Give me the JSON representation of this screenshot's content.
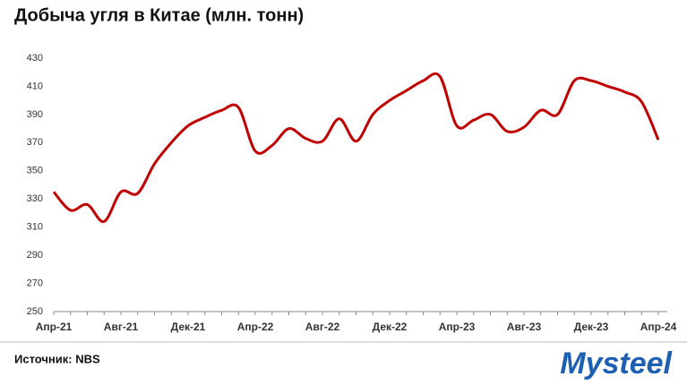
{
  "chart_data": {
    "type": "line",
    "title": "Добыча угля в Китае (млн. тонн)",
    "categories": [
      "Апр-21",
      null,
      null,
      null,
      "Авг-21",
      null,
      null,
      null,
      "Дек-21",
      null,
      null,
      null,
      "Апр-22",
      null,
      null,
      null,
      "Авг-22",
      null,
      null,
      null,
      "Дек-22",
      null,
      null,
      null,
      "Апр-23",
      null,
      null,
      null,
      "Авг-23",
      null,
      null,
      null,
      "Дек-23",
      null,
      null,
      null,
      "Апр-24"
    ],
    "series": [
      {
        "name": "Добыча угля",
        "color": "#c00000",
        "values": [
          335,
          322,
          326,
          314,
          335,
          334,
          355,
          370,
          382,
          388,
          393,
          395,
          364,
          368,
          380,
          373,
          371,
          387,
          371,
          390,
          400,
          407,
          414,
          417,
          382,
          386,
          390,
          378,
          381,
          393,
          390,
          414,
          414,
          410,
          406,
          399,
          372
        ]
      }
    ],
    "ylim": [
      250,
      430
    ],
    "yticks": [
      250,
      270,
      290,
      310,
      330,
      350,
      370,
      390,
      410,
      430
    ],
    "source": "Источник: NBS",
    "logo": "Mysteel"
  }
}
